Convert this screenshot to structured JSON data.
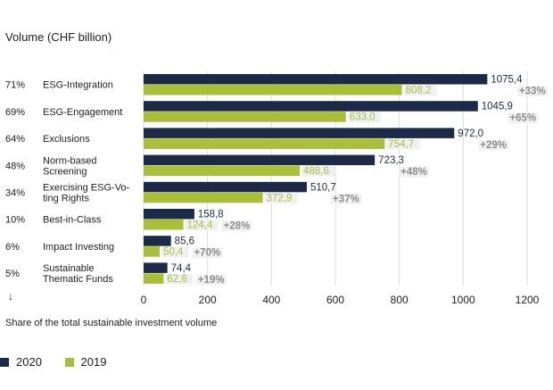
{
  "chart_data": {
    "type": "bar",
    "orientation": "horizontal",
    "title": "Volume (CHF billion)",
    "footnote": "Share of the total sustainable investment volume",
    "xlim": [
      0,
      1200
    ],
    "xticks": [
      "0",
      "200",
      "400",
      "600",
      "800",
      "1000",
      "1200"
    ],
    "grid": true,
    "legend_position": "bottom-left",
    "categories": [
      {
        "share": "71%",
        "label": [
          "ESG-Integration"
        ],
        "v2020": 1075.4,
        "v2019": 808.2,
        "l2020": "1075,4",
        "l2019": "808,2",
        "growth": "+33%"
      },
      {
        "share": "69%",
        "label": [
          "ESG-Engagement"
        ],
        "v2020": 1045.9,
        "v2019": 633.0,
        "l2020": "1045,9",
        "l2019": "633,0",
        "growth": "+65%"
      },
      {
        "share": "64%",
        "label": [
          "Exclusions"
        ],
        "v2020": 972.0,
        "v2019": 754.7,
        "l2020": "972,0",
        "l2019": "754,7",
        "growth": "+29%"
      },
      {
        "share": "48%",
        "label": [
          "Norm-based",
          "Screening"
        ],
        "v2020": 723.3,
        "v2019": 488.6,
        "l2020": "723,3",
        "l2019": "488,6",
        "growth": "+48%"
      },
      {
        "share": "34%",
        "label": [
          "Exercising ESG-Vo-",
          "ting Rights"
        ],
        "v2020": 510.7,
        "v2019": 372.9,
        "l2020": "510,7",
        "l2019": "372,9",
        "growth": "+37%"
      },
      {
        "share": "10%",
        "label": [
          "Best-in-Class"
        ],
        "v2020": 158.8,
        "v2019": 124.4,
        "l2020": "158,8",
        "l2019": "124,4",
        "growth": "+28%"
      },
      {
        "share": "6%",
        "label": [
          "Impact Investing"
        ],
        "v2020": 85.6,
        "v2019": 50.4,
        "l2020": "85,6",
        "l2019": "50,4",
        "growth": "+70%"
      },
      {
        "share": "5%",
        "label": [
          "Sustainable",
          "Thematic Funds"
        ],
        "v2020": 74.4,
        "v2019": 62.6,
        "l2020": "74,4",
        "l2019": "62,6",
        "growth": "+19%"
      }
    ],
    "series": [
      {
        "name": "2020",
        "color": "#1b2a47"
      },
      {
        "name": "2019",
        "color": "#a9bf36"
      }
    ],
    "growth_color": "#8c8c8c"
  }
}
